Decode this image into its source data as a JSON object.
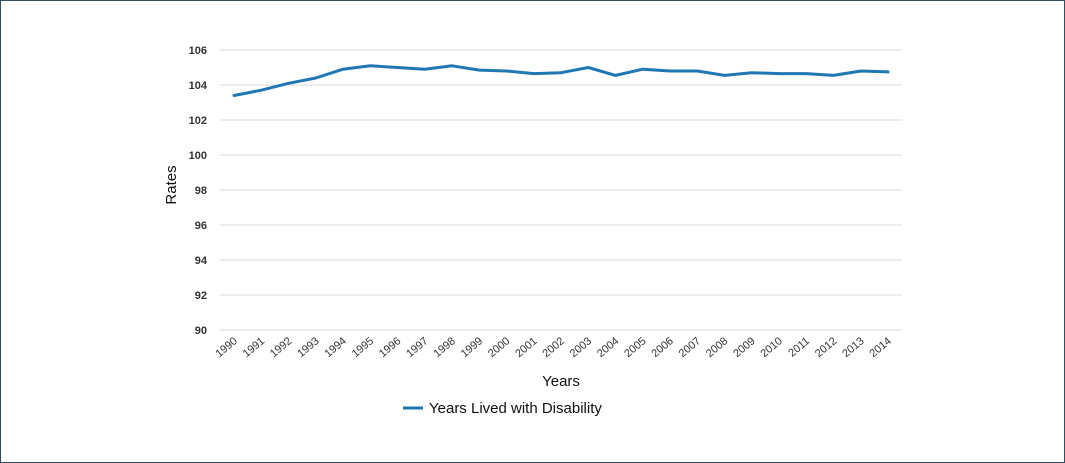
{
  "chart_data": {
    "type": "line",
    "xlabel": "Years",
    "ylabel": "Rates",
    "ylim": [
      90,
      106
    ],
    "yticks": [
      90,
      92,
      94,
      96,
      98,
      100,
      102,
      104,
      106
    ],
    "grid": true,
    "legend_position": "bottom",
    "categories": [
      "1990",
      "1991",
      "1992",
      "1993",
      "1994",
      "1995",
      "1996",
      "1997",
      "1998",
      "1999",
      "2000",
      "2001",
      "2002",
      "2003",
      "2004",
      "2005",
      "2006",
      "2007",
      "2008",
      "2009",
      "2010",
      "2011",
      "2012",
      "2013",
      "2014"
    ],
    "series": [
      {
        "name": "Years Lived with Disability",
        "color": "#1f77b4",
        "values": [
          103.4,
          103.7,
          104.1,
          104.4,
          104.9,
          105.1,
          105.0,
          104.9,
          105.1,
          104.85,
          104.8,
          104.65,
          104.7,
          105.0,
          104.55,
          104.9,
          104.8,
          104.8,
          104.55,
          104.7,
          104.65,
          104.65,
          104.55,
          104.8,
          104.75
        ]
      }
    ]
  }
}
